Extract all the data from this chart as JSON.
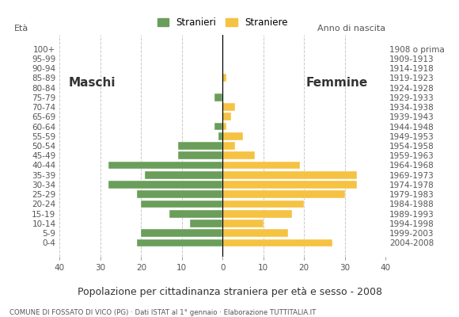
{
  "age_groups": [
    "100+",
    "95-99",
    "90-94",
    "85-89",
    "80-84",
    "75-79",
    "70-74",
    "65-69",
    "60-64",
    "55-59",
    "50-54",
    "45-49",
    "40-44",
    "35-39",
    "30-34",
    "25-29",
    "20-24",
    "15-19",
    "10-14",
    "5-9",
    "0-4"
  ],
  "birth_years": [
    "1908 o prima",
    "1909-1913",
    "1914-1918",
    "1919-1923",
    "1924-1928",
    "1929-1933",
    "1934-1938",
    "1939-1943",
    "1944-1948",
    "1949-1953",
    "1954-1958",
    "1959-1963",
    "1964-1968",
    "1969-1973",
    "1974-1978",
    "1979-1983",
    "1984-1988",
    "1989-1993",
    "1994-1998",
    "1999-2003",
    "2004-2008"
  ],
  "males": [
    0,
    0,
    0,
    0,
    0,
    2,
    0,
    0,
    2,
    1,
    11,
    11,
    28,
    19,
    28,
    21,
    20,
    13,
    8,
    20,
    21
  ],
  "females": [
    0,
    0,
    0,
    1,
    0,
    0,
    3,
    2,
    1,
    5,
    3,
    8,
    19,
    33,
    33,
    30,
    20,
    17,
    10,
    16,
    27
  ],
  "male_color": "#6a9e5a",
  "female_color": "#f5c242",
  "background_color": "#ffffff",
  "grid_color": "#bbbbbb",
  "title": "Popolazione per cittadinanza straniera per età e sesso - 2008",
  "subtitle": "COMUNE DI FOSSATO DI VICO (PG) · Dati ISTAT al 1° gennaio · Elaborazione TUTTITALIA.IT",
  "ylabel_left": "Età",
  "ylabel_right": "Anno di nascita",
  "label_maschi": "Maschi",
  "label_femmine": "Femmine",
  "legend_male": "Stranieri",
  "legend_female": "Straniere",
  "xlim": 40
}
